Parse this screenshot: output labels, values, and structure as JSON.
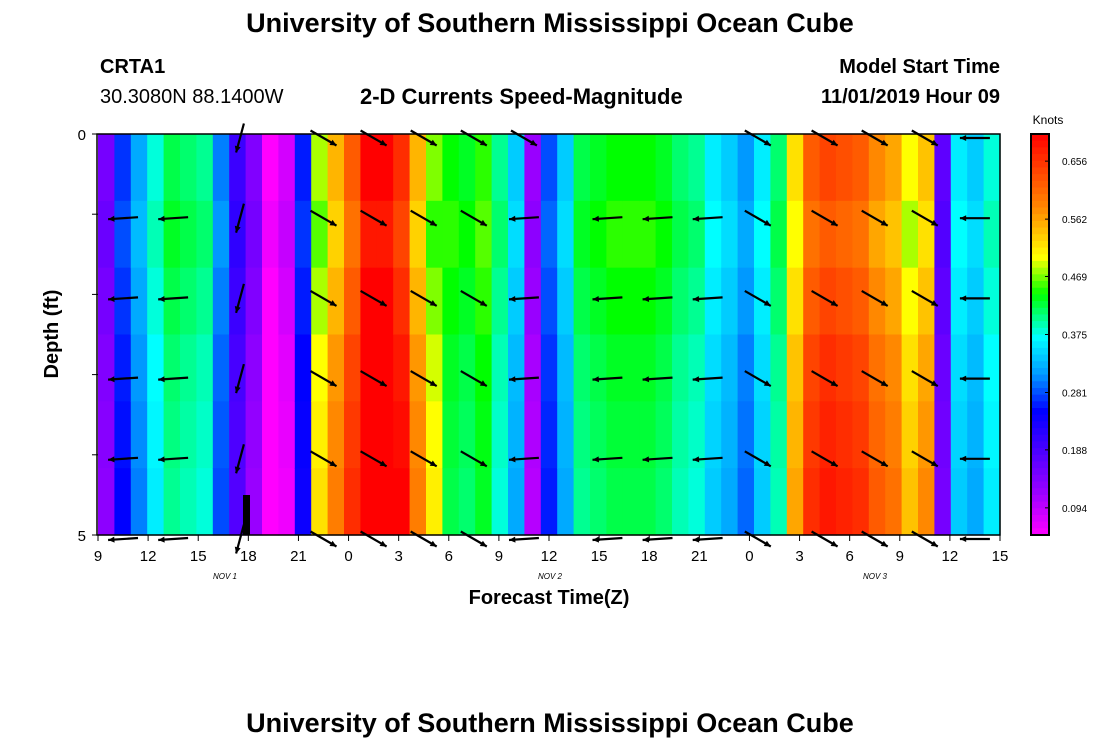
{
  "page": {
    "title_top": "University of Southern Mississippi Ocean Cube",
    "title_bottom": "University of Southern Mississippi Ocean Cube",
    "station": "CRTA1",
    "location": "30.3080N 88.1400W",
    "plot_title": "2-D Currents Speed-Magnitude",
    "start_label": "Model Start Time",
    "start_value": "11/01/2019 Hour 09"
  },
  "chart_data": {
    "type": "heatmap",
    "title": "2-D Currents Speed-Magnitude",
    "xlabel": "Forecast Time(Z)",
    "ylabel": "Depth (ft)",
    "x_ticks": [
      "9",
      "12",
      "15",
      "18",
      "21",
      "0",
      "3",
      "6",
      "9",
      "12",
      "15",
      "18",
      "21",
      "0",
      "3",
      "6",
      "9",
      "12",
      "15"
    ],
    "date_labels": [
      "NOV 1",
      "NOV 2",
      "NOV 3"
    ],
    "y_ticks": [
      "0",
      "5"
    ],
    "y_range": [
      0,
      5
    ],
    "x_range_hours": [
      0,
      54
    ],
    "colorbar": {
      "unit": "Knots",
      "labels": [
        "0.656",
        "0.562",
        "0.469",
        "0.375",
        "0.281",
        "0.188",
        "0.094"
      ]
    },
    "palette": {
      "magenta": "#ff00ff",
      "purple": "#9900ff",
      "blue": "#0000ff",
      "sky": "#0099ff",
      "cyan": "#00ffff",
      "green": "#00ff00",
      "yellow": "#ffff00",
      "orange": "#ff8800",
      "red": "#ff0000"
    },
    "speed_columns": [
      0.15,
      0.27,
      0.32,
      0.38,
      0.42,
      0.41,
      0.4,
      0.3,
      0.2,
      0.14,
      0.05,
      0.08,
      0.26,
      0.48,
      0.55,
      0.62,
      0.7,
      0.7,
      0.66,
      0.55,
      0.47,
      0.44,
      0.43,
      0.45,
      0.4,
      0.34,
      0.12,
      0.28,
      0.34,
      0.42,
      0.43,
      0.44,
      0.44,
      0.44,
      0.43,
      0.41,
      0.4,
      0.36,
      0.34,
      0.31,
      0.36,
      0.41,
      0.52,
      0.62,
      0.64,
      0.63,
      0.62,
      0.58,
      0.56,
      0.5,
      0.54,
      0.17,
      0.36,
      0.34,
      0.38
    ],
    "depth_variation": [
      0.0,
      -0.02,
      0.0,
      0.02,
      0.03,
      0.04
    ],
    "vector_times": [
      1.5,
      4.5,
      8.5,
      13.5,
      16.5,
      19.5,
      22.5,
      25.5,
      30.5,
      33.5,
      36.5,
      39.5,
      43.5,
      46.5,
      49.5,
      52.5
    ],
    "vector_depths": [
      0,
      1,
      2,
      3,
      4,
      5
    ],
    "vector_directions_deg": [
      266,
      266,
      195,
      120,
      120,
      120,
      120,
      266,
      266,
      266,
      266,
      120,
      120,
      120,
      120,
      270
    ],
    "vector_direction_top_row": [
      null,
      null,
      195,
      120,
      120,
      120,
      120,
      120,
      null,
      null,
      null,
      120,
      120,
      120,
      120,
      270
    ]
  }
}
